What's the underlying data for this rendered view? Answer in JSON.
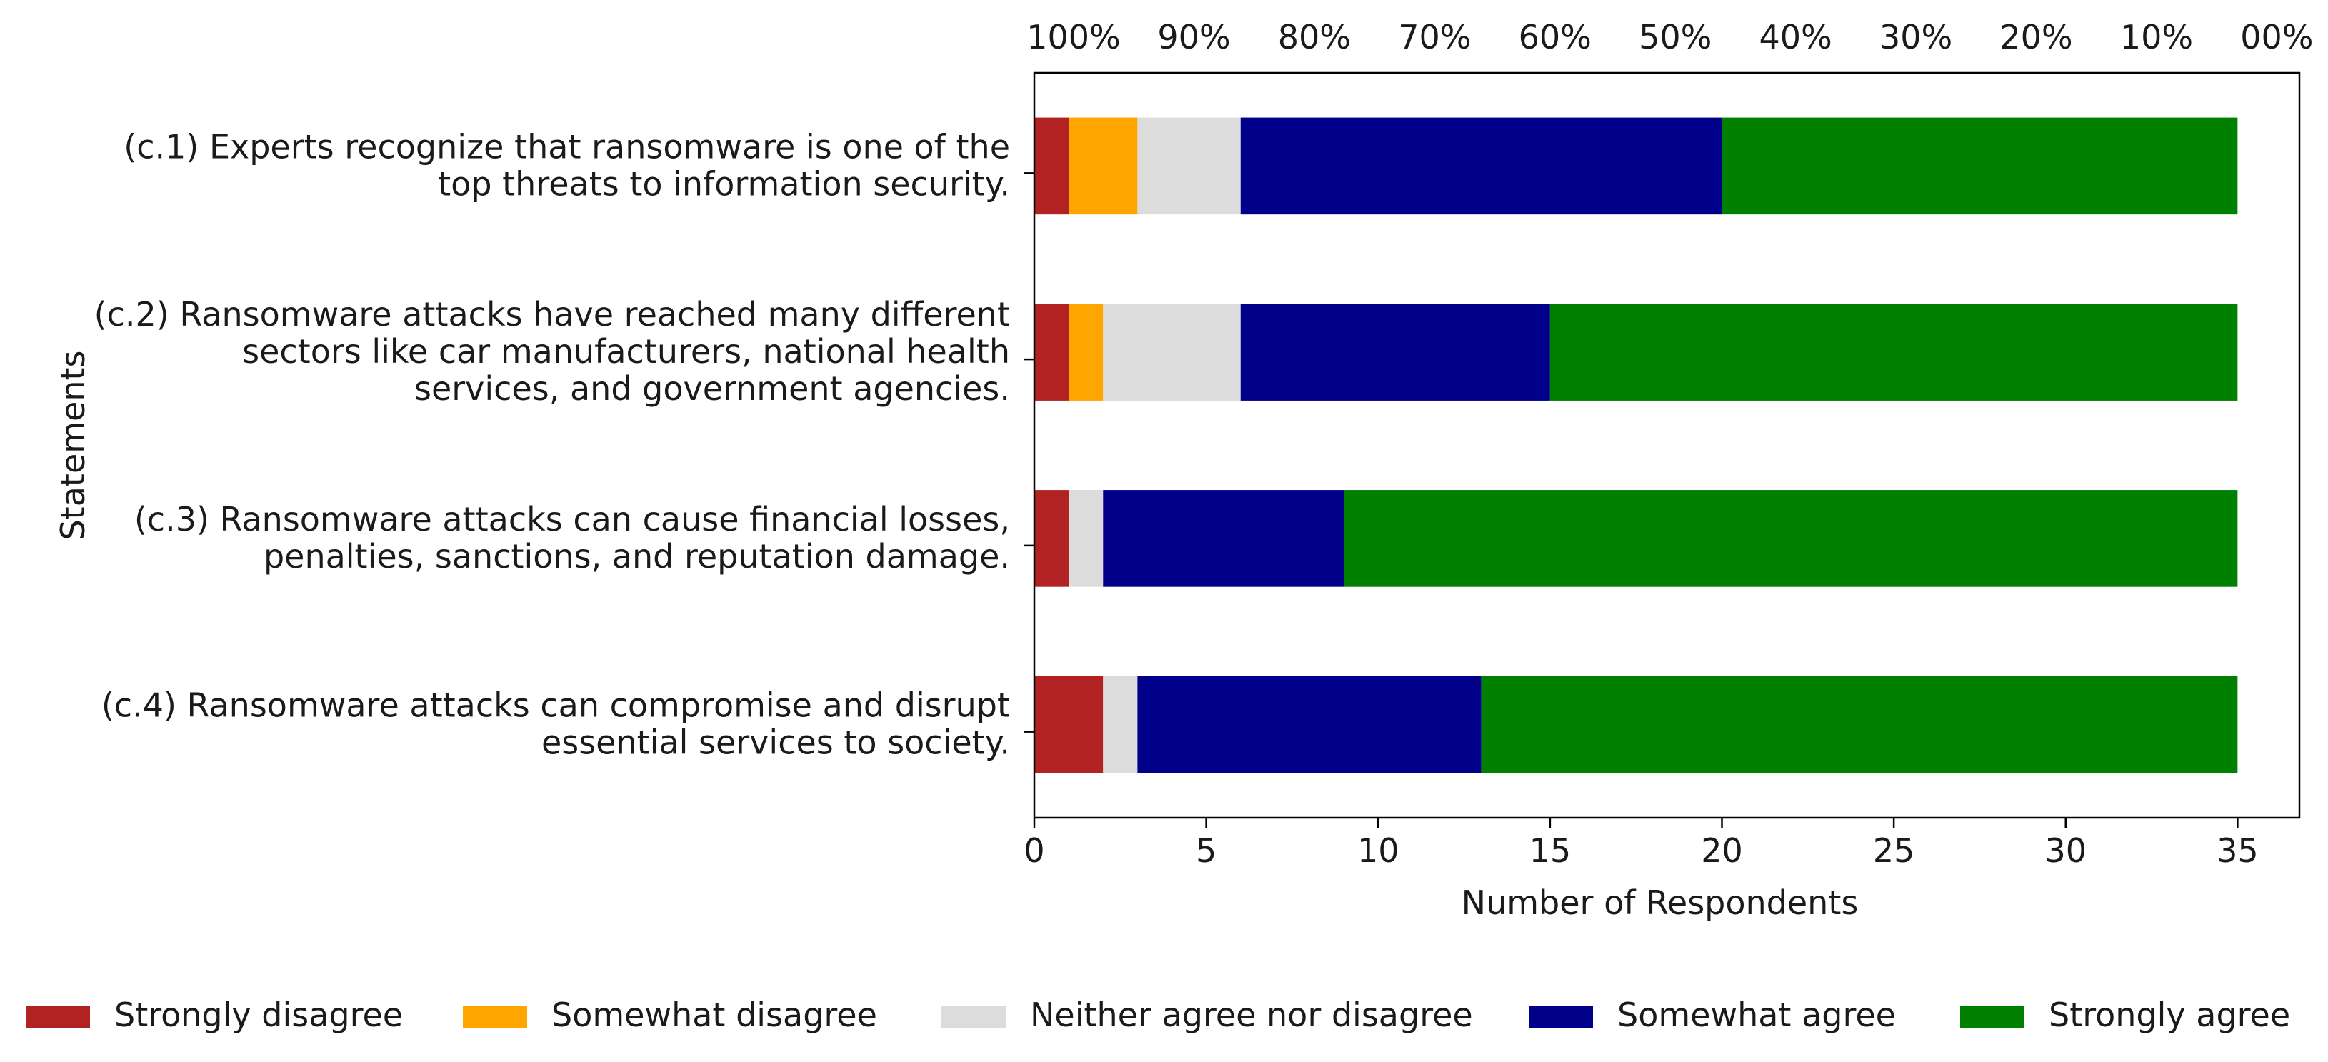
{
  "chart_data": {
    "type": "bar",
    "orientation": "horizontal",
    "stacked": true,
    "categories": [
      "(c.1) Experts recognize that ransomware is one of the top threats to information security.",
      "(c.2) Ransomware attacks have reached many different sectors like car manufacturers, national health services, and government agencies.",
      "(c.3) Ransomware attacks can cause financial losses, penalties, sanctions, and reputation damage.",
      "(c.4) Ransomware attacks can compromise and disrupt essential services to society."
    ],
    "category_lines": [
      [
        "(c.1) Experts recognize that ransomware is one of the",
        "top threats to information security."
      ],
      [
        "(c.2) Ransomware attacks have reached many different",
        "sectors like car manufacturers, national health",
        "services, and government agencies."
      ],
      [
        "(c.3) Ransomware attacks can cause financial losses,",
        "penalties, sanctions, and reputation damage."
      ],
      [
        "(c.4) Ransomware attacks can compromise and disrupt",
        "essential services to society."
      ]
    ],
    "series": [
      {
        "name": "Strongly disagree",
        "color": "#b22222",
        "values": [
          1,
          1,
          1,
          2
        ]
      },
      {
        "name": "Somewhat disagree",
        "color": "#ffa500",
        "values": [
          2,
          1,
          0,
          0
        ]
      },
      {
        "name": "Neither agree nor disagree",
        "color": "#dcdcdc",
        "values": [
          3,
          4,
          1,
          1
        ]
      },
      {
        "name": "Somewhat agree",
        "color": "#00008b",
        "values": [
          14,
          9,
          7,
          10
        ]
      },
      {
        "name": "Strongly agree",
        "color": "#008000",
        "values": [
          15,
          20,
          26,
          22
        ]
      }
    ],
    "xlabel": "Number of Respondents",
    "ylabel": "Statements",
    "xlim": [
      0,
      36.8
    ],
    "xticks": [
      0,
      5,
      10,
      15,
      20,
      25,
      30,
      35
    ],
    "xtick_labels": [
      "0",
      "5",
      "10",
      "15",
      "20",
      "25",
      "30",
      "35"
    ],
    "top_axis": {
      "ticks": [
        0,
        3.5,
        7,
        10.5,
        14,
        17.5,
        21,
        24.5,
        28,
        31.5,
        35
      ],
      "labels": [
        "100%",
        "90%",
        "80%",
        "70%",
        "60%",
        "50%",
        "40%",
        "30%",
        "20%",
        "10%",
        "00%"
      ]
    },
    "legend_position": "bottom"
  }
}
